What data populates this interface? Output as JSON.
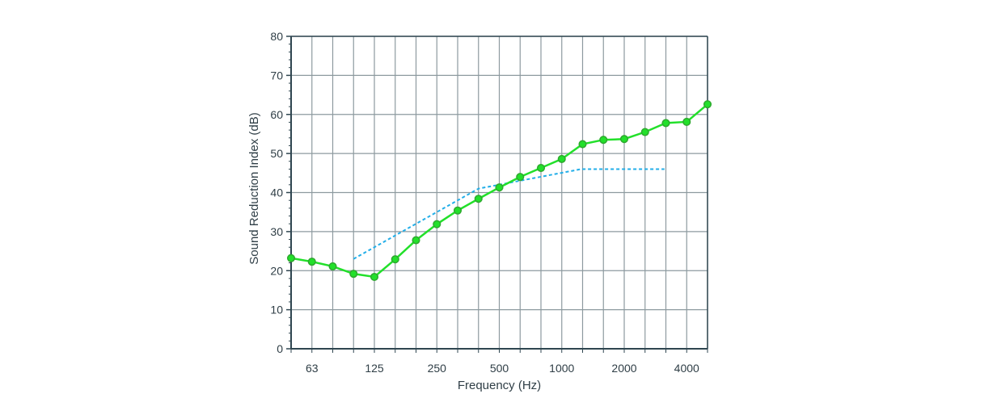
{
  "chart_data": {
    "type": "line",
    "title": "",
    "xlabel": "Frequency (Hz)",
    "ylabel": "Sound Reduction Index (dB)",
    "x_scale": "log",
    "x": [
      50,
      63,
      80,
      100,
      125,
      160,
      200,
      250,
      315,
      400,
      500,
      630,
      800,
      1000,
      1250,
      1600,
      2000,
      2500,
      3150,
      4000,
      5000
    ],
    "x_tick_labels": [
      "63",
      "125",
      "250",
      "500",
      "1000",
      "2000",
      "4000"
    ],
    "ylim": [
      0,
      80
    ],
    "y_ticks": [
      "0",
      "10",
      "20",
      "30",
      "40",
      "50",
      "60",
      "70",
      "80"
    ],
    "grid": true,
    "series": [
      {
        "style": "solid-with-markers",
        "color": "#22e02a",
        "marker_color": "#2ea82f",
        "values": [
          23.2,
          22.3,
          21.1,
          19.2,
          18.4,
          22.9,
          27.8,
          31.9,
          35.4,
          38.4,
          41.3,
          44.0,
          46.3,
          48.6,
          52.4,
          53.5,
          53.7,
          55.5,
          57.8,
          58.1,
          62.6
        ]
      },
      {
        "style": "dashed",
        "color": "#22aee8",
        "x": [
          100,
          400,
          1250,
          3150
        ],
        "values": [
          23,
          41,
          46,
          46
        ]
      }
    ]
  },
  "colors": {
    "grid": "#8d9a9f",
    "axis": "#2f4650",
    "text": "#2f3e46"
  }
}
